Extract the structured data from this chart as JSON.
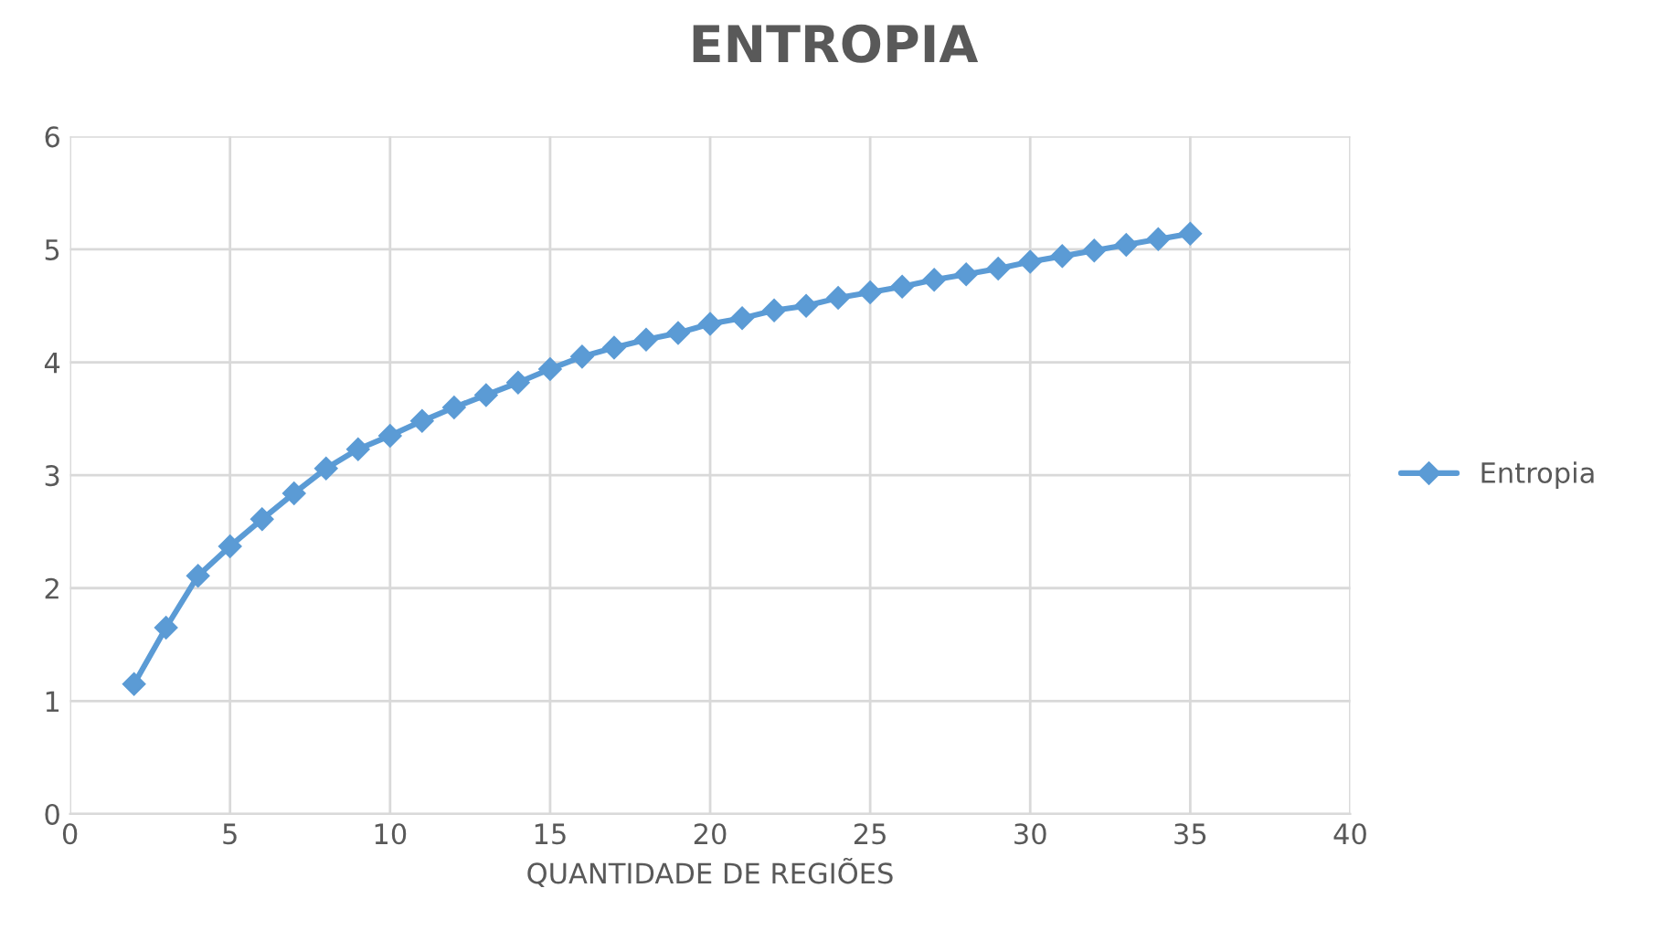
{
  "chart_data": {
    "type": "line",
    "title": "ENTROPIA",
    "xlabel": "QUANTIDADE DE REGIÕES",
    "x": [
      2,
      3,
      4,
      5,
      6,
      7,
      8,
      9,
      10,
      11,
      12,
      13,
      14,
      15,
      16,
      17,
      18,
      19,
      20,
      21,
      22,
      23,
      24,
      25,
      26,
      27,
      28,
      29,
      30,
      31,
      32,
      33,
      34,
      35
    ],
    "series": [
      {
        "name": "Entropia",
        "color": "#5b9bd5",
        "values": [
          1.15,
          1.65,
          2.11,
          2.37,
          2.61,
          2.84,
          3.06,
          3.23,
          3.35,
          3.48,
          3.6,
          3.71,
          3.82,
          3.94,
          4.05,
          4.13,
          4.2,
          4.26,
          4.34,
          4.39,
          4.46,
          4.5,
          4.57,
          4.62,
          4.67,
          4.73,
          4.78,
          4.83,
          4.89,
          4.94,
          4.99,
          5.04,
          5.09,
          5.14
        ]
      }
    ],
    "xlim": [
      0,
      40
    ],
    "xticks": [
      0,
      5,
      10,
      15,
      20,
      25,
      30,
      35,
      40
    ],
    "ylim": [
      0,
      6
    ],
    "yticks": [
      0,
      1,
      2,
      3,
      4,
      5,
      6
    ],
    "grid": true,
    "legend": "right",
    "marker": "diamond",
    "line_style": "solid"
  }
}
